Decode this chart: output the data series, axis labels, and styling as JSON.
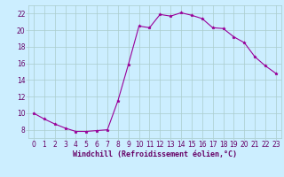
{
  "x": [
    0,
    1,
    2,
    3,
    4,
    5,
    6,
    7,
    8,
    9,
    10,
    11,
    12,
    13,
    14,
    15,
    16,
    17,
    18,
    19,
    20,
    21,
    22,
    23
  ],
  "y": [
    10.0,
    9.3,
    8.7,
    8.2,
    7.8,
    7.8,
    7.9,
    8.0,
    11.5,
    15.9,
    20.5,
    20.3,
    21.9,
    21.7,
    22.1,
    21.8,
    21.4,
    20.3,
    20.2,
    19.2,
    18.5,
    16.8,
    15.7,
    14.8
  ],
  "line_color": "#990099",
  "marker": "*",
  "marker_size": 2.5,
  "bg_color": "#cceeff",
  "grid_color": "#aacccc",
  "xlabel": "Windchill (Refroidissement éolien,°C)",
  "xlabel_color": "#660066",
  "xlabel_fontsize": 6,
  "tick_color": "#660066",
  "tick_fontsize": 5.5,
  "ylim": [
    7,
    23
  ],
  "xlim": [
    -0.5,
    23.5
  ],
  "yticks": [
    8,
    10,
    12,
    14,
    16,
    18,
    20,
    22
  ],
  "xticks": [
    0,
    1,
    2,
    3,
    4,
    5,
    6,
    7,
    8,
    9,
    10,
    11,
    12,
    13,
    14,
    15,
    16,
    17,
    18,
    19,
    20,
    21,
    22,
    23
  ]
}
